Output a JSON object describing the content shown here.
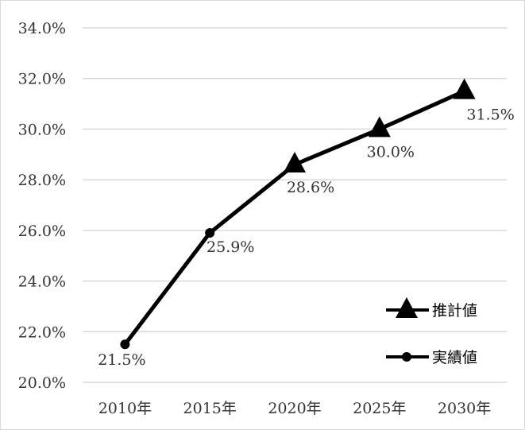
{
  "chart_data": {
    "type": "line",
    "categories": [
      "2010年",
      "2015年",
      "2020年",
      "2025年",
      "2030年"
    ],
    "ylim": [
      0.2,
      0.34
    ],
    "y_ticks": [
      {
        "value": 0.34,
        "label": "34.0%"
      },
      {
        "value": 0.32,
        "label": "32.0%"
      },
      {
        "value": 0.3,
        "label": "30.0%"
      },
      {
        "value": 0.28,
        "label": "28.0%"
      },
      {
        "value": 0.26,
        "label": "26.0%"
      },
      {
        "value": 0.24,
        "label": "24.0%"
      },
      {
        "value": 0.22,
        "label": "22.0%"
      },
      {
        "value": 0.2,
        "label": "20.0%"
      }
    ],
    "grid": true,
    "legend_position": "bottom-right",
    "series": [
      {
        "name": "推計値",
        "marker": "triangle",
        "color": "#000000",
        "values": [
          null,
          null,
          0.286,
          0.3,
          0.315
        ],
        "labels": [
          null,
          null,
          "28.6%",
          "30.0%",
          "31.5%"
        ]
      },
      {
        "name": "実績値",
        "marker": "circle",
        "color": "#000000",
        "values": [
          0.215,
          0.259,
          null,
          null,
          null
        ],
        "labels": [
          "21.5%",
          "25.9%",
          null,
          null,
          null
        ]
      }
    ],
    "line_path_values": [
      0.215,
      0.259,
      0.286,
      0.3,
      0.315
    ]
  },
  "legend": [
    {
      "label": "推計値",
      "marker": "triangle-icon"
    },
    {
      "label": "実績値",
      "marker": "circle-icon"
    }
  ],
  "colors": {
    "line": "#000000",
    "grid": "#d9d9d9",
    "axis_text": "#333333"
  }
}
